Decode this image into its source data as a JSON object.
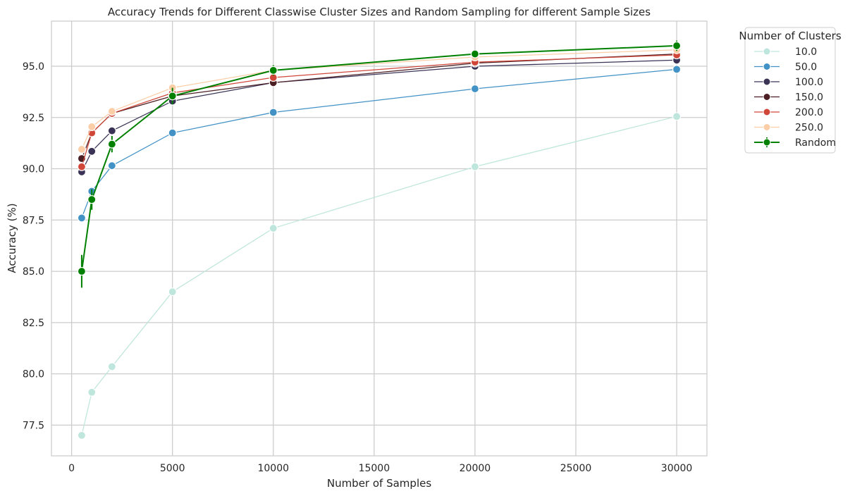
{
  "chart_data": {
    "type": "line",
    "title": "Accuracy Trends for Different Classwise Cluster Sizes and Random Sampling for different Sample Sizes",
    "xlabel": "Number of Samples",
    "ylabel": "Accuracy (%)",
    "xlim": [
      -1000,
      31500
    ],
    "ylim": [
      76.0,
      97.2
    ],
    "xticks": [
      0,
      5000,
      10000,
      15000,
      20000,
      25000,
      30000
    ],
    "xtick_labels": [
      "0",
      "5000",
      "10000",
      "15000",
      "20000",
      "25000",
      "30000"
    ],
    "yticks": [
      77.5,
      80.0,
      82.5,
      85.0,
      87.5,
      90.0,
      92.5,
      95.0
    ],
    "ytick_labels": [
      "77.5",
      "80.0",
      "82.5",
      "85.0",
      "87.5",
      "90.0",
      "92.5",
      "95.0"
    ],
    "grid": true,
    "legend_title": "Number of Clusters",
    "legend_position": "outside-top-right",
    "x": [
      500,
      1000,
      2000,
      5000,
      10000,
      20000,
      30000
    ],
    "series": [
      {
        "name": "10.0",
        "color": "#bfe6dc",
        "values": [
          77.0,
          79.1,
          80.35,
          84.0,
          87.1,
          90.1,
          92.55
        ]
      },
      {
        "name": "50.0",
        "color": "#4292c6",
        "values": [
          87.6,
          88.9,
          90.15,
          91.75,
          92.75,
          93.9,
          94.85
        ]
      },
      {
        "name": "100.0",
        "color": "#3a3356",
        "values": [
          89.85,
          90.85,
          91.85,
          93.3,
          94.2,
          95.0,
          95.3
        ]
      },
      {
        "name": "150.0",
        "color": "#4b1f24",
        "values": [
          90.5,
          91.75,
          92.7,
          93.55,
          94.2,
          95.15,
          95.6
        ]
      },
      {
        "name": "200.0",
        "color": "#d0473a",
        "values": [
          90.1,
          91.75,
          92.7,
          93.7,
          94.45,
          95.2,
          95.55
        ]
      },
      {
        "name": "250.0",
        "color": "#fbcea8",
        "values": [
          90.95,
          92.05,
          92.8,
          93.95,
          94.8,
          95.45,
          95.8
        ]
      },
      {
        "name": "Random",
        "color": "#008000",
        "values": [
          85.0,
          88.5,
          91.2,
          93.55,
          94.8,
          95.6,
          96.0
        ],
        "error": [
          0.8,
          0.5,
          0.4,
          0.4,
          0.25,
          0.2,
          0.25
        ]
      }
    ]
  }
}
